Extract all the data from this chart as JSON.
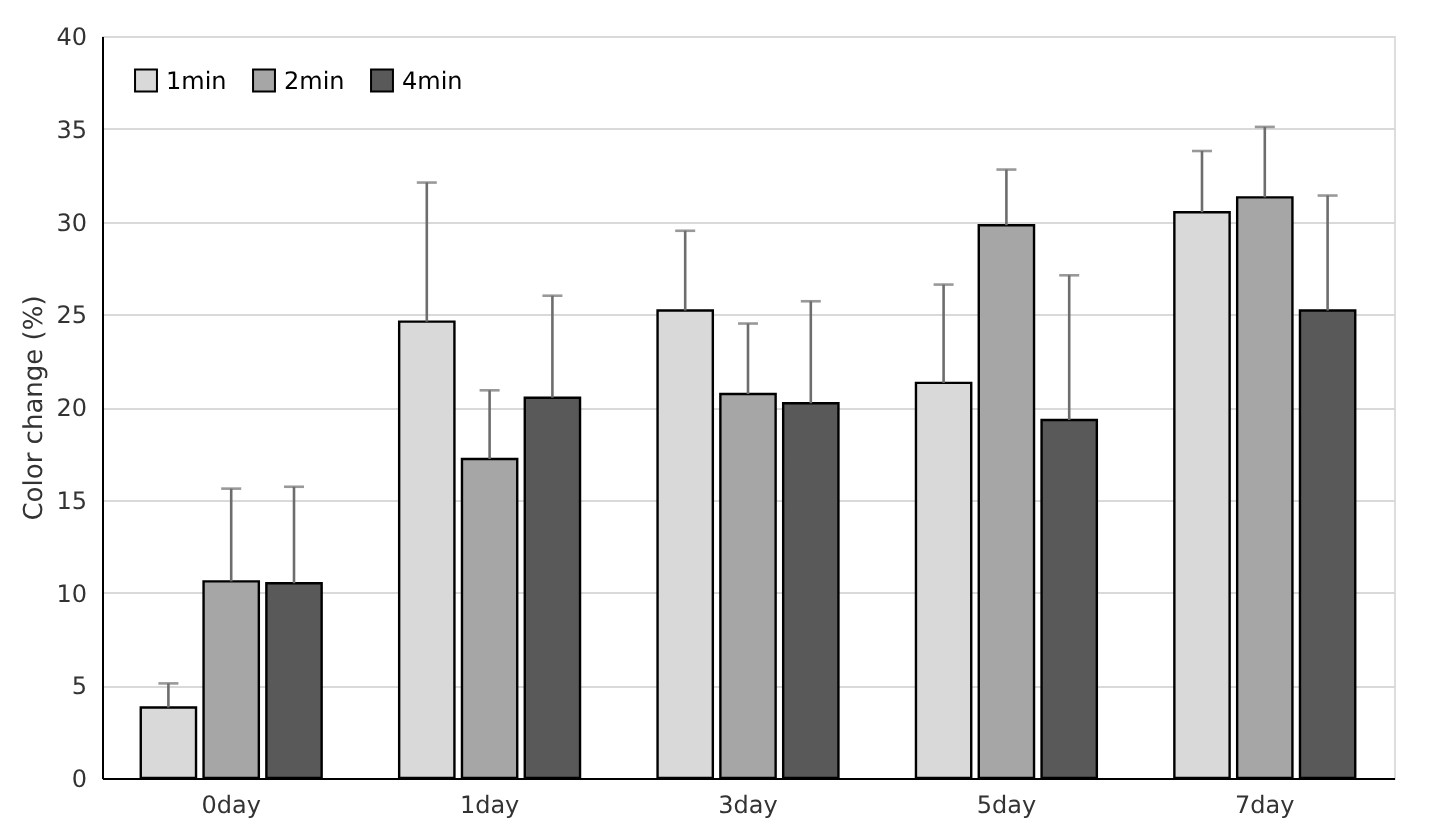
{
  "chart_data": {
    "type": "bar",
    "ylabel": "Color change (%)",
    "categories": [
      "0day",
      "1day",
      "3day",
      "5day",
      "7day"
    ],
    "series": [
      {
        "name": "1min",
        "color": "#d9d9d9",
        "values": [
          3.8,
          24.6,
          25.2,
          21.3,
          30.5
        ],
        "errors": [
          [
            3.8,
            5.1
          ],
          [
            24.6,
            32.1
          ],
          [
            25.2,
            29.5
          ],
          [
            21.3,
            26.6
          ],
          [
            30.5,
            33.8
          ]
        ]
      },
      {
        "name": "2min",
        "color": "#a6a6a6",
        "values": [
          10.6,
          17.2,
          20.7,
          29.8,
          31.3
        ],
        "errors": [
          [
            10.6,
            15.6
          ],
          [
            17.2,
            20.9
          ],
          [
            20.7,
            24.5
          ],
          [
            29.8,
            32.8
          ],
          [
            31.3,
            35.1
          ]
        ]
      },
      {
        "name": "4min",
        "color": "#595959",
        "values": [
          10.5,
          20.5,
          20.2,
          19.3,
          25.2
        ],
        "errors": [
          [
            10.5,
            15.7
          ],
          [
            20.5,
            26.0
          ],
          [
            20.2,
            25.7
          ],
          [
            19.3,
            27.1
          ],
          [
            25.2,
            31.4
          ]
        ]
      }
    ],
    "ylim": [
      0,
      40
    ],
    "yticks": [
      0,
      5,
      10,
      15,
      20,
      25,
      30,
      35,
      40
    ],
    "grid": "y",
    "legend": "top left"
  }
}
